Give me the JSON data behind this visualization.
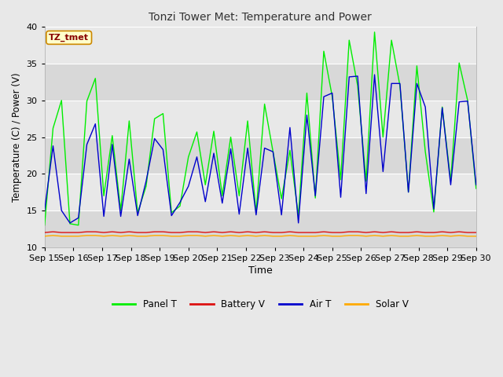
{
  "title": "Tonzi Tower Met: Temperature and Power",
  "xlabel": "Time",
  "ylabel": "Temperature (C) / Power (V)",
  "ylim": [
    10,
    40
  ],
  "annotation": "TZ_tmet",
  "outer_bg": "#e8e8e8",
  "plot_bg": "#e0e0e0",
  "grid_color": "#ffffff",
  "xtick_labels": [
    "Sep 15",
    "Sep 16",
    "Sep 17",
    "Sep 18",
    "Sep 19",
    "Sep 20",
    "Sep 21",
    "Sep 22",
    "Sep 23",
    "Sep 24",
    "Sep 25",
    "Sep 26",
    "Sep 27",
    "Sep 28",
    "Sep 29",
    "Sep 30"
  ],
  "panel_t_color": "#00ee00",
  "air_t_color": "#0000cc",
  "battery_v_color": "#dd1111",
  "solar_v_color": "#ffaa00",
  "panel_t": [
    13.0,
    26.2,
    30.0,
    13.2,
    13.0,
    29.9,
    33.0,
    17.0,
    25.2,
    15.0,
    27.2,
    14.7,
    18.3,
    27.5,
    28.2,
    14.7,
    15.6,
    22.3,
    25.7,
    18.5,
    25.8,
    17.0,
    25.0,
    17.0,
    27.2,
    14.7,
    29.5,
    23.0,
    16.6,
    23.2,
    14.3,
    31.0,
    16.7,
    36.7,
    30.5,
    19.2,
    38.2,
    32.0,
    19.0,
    39.3,
    25.0,
    38.2,
    32.0,
    17.5,
    34.7,
    23.0,
    14.8,
    29.1,
    19.0,
    35.1,
    30.0,
    18.0
  ],
  "air_t": [
    15.0,
    23.8,
    15.0,
    13.3,
    14.0,
    24.0,
    26.8,
    14.2,
    24.0,
    14.2,
    22.0,
    14.3,
    19.0,
    24.8,
    23.3,
    14.3,
    16.1,
    18.3,
    22.3,
    16.2,
    22.8,
    16.0,
    23.4,
    14.5,
    23.5,
    14.4,
    23.5,
    23.0,
    14.4,
    26.3,
    13.3,
    28.0,
    17.0,
    30.5,
    31.0,
    16.8,
    33.2,
    33.3,
    17.3,
    33.5,
    20.3,
    32.3,
    32.3,
    17.5,
    32.3,
    29.1,
    15.2,
    29.0,
    18.5,
    29.8,
    29.9,
    18.5
  ],
  "battery_v": [
    12.0,
    12.1,
    12.0,
    12.0,
    12.0,
    12.1,
    12.1,
    12.0,
    12.1,
    12.0,
    12.1,
    12.0,
    12.0,
    12.1,
    12.1,
    12.0,
    12.0,
    12.1,
    12.1,
    12.0,
    12.1,
    12.0,
    12.1,
    12.0,
    12.1,
    12.0,
    12.1,
    12.0,
    12.0,
    12.1,
    12.0,
    12.0,
    12.0,
    12.1,
    12.0,
    12.0,
    12.1,
    12.1,
    12.0,
    12.1,
    12.0,
    12.1,
    12.0,
    12.0,
    12.1,
    12.0,
    12.0,
    12.1,
    12.0,
    12.1,
    12.0,
    12.0
  ],
  "solar_v": [
    11.5,
    11.6,
    11.5,
    11.5,
    11.5,
    11.6,
    11.6,
    11.5,
    11.6,
    11.5,
    11.6,
    11.5,
    11.5,
    11.6,
    11.6,
    11.5,
    11.5,
    11.6,
    11.6,
    11.5,
    11.6,
    11.5,
    11.6,
    11.5,
    11.6,
    11.5,
    11.6,
    11.5,
    11.5,
    11.6,
    11.5,
    11.5,
    11.5,
    11.6,
    11.5,
    11.5,
    11.6,
    11.6,
    11.5,
    11.6,
    11.5,
    11.6,
    11.5,
    11.5,
    11.6,
    11.5,
    11.5,
    11.6,
    11.5,
    11.6,
    11.5,
    11.5
  ],
  "band_colors": [
    "#d8d8d8",
    "#e8e8e8"
  ],
  "band_edges": [
    10,
    15,
    20,
    25,
    30,
    35,
    40
  ]
}
